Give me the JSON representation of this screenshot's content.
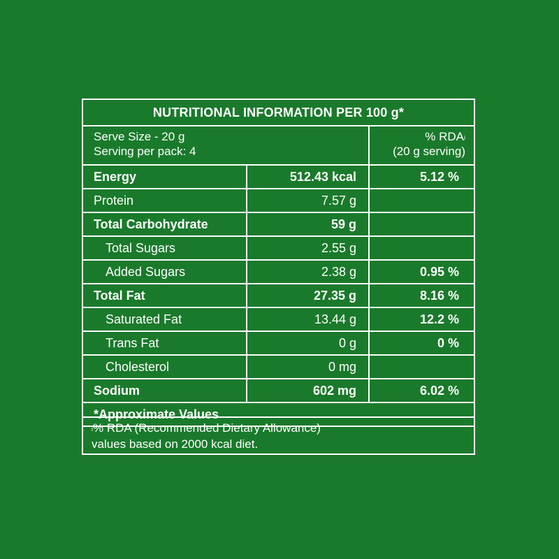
{
  "title": "NUTRITIONAL INFORMATION PER 100 g*",
  "serve": {
    "size": "Serve Size - 20 g",
    "per_pack": "Serving per pack: 4",
    "rda_label": "% RDA",
    "rda_mark": "i",
    "rda_serving": "(20 g serving)"
  },
  "rows": [
    {
      "name": "Energy",
      "value": "512.43 kcal",
      "rda": "5.12 %"
    },
    {
      "name": "Protein",
      "value": "7.57 g",
      "rda": ""
    },
    {
      "name": "Total Carbohydrate",
      "value": "59 g",
      "rda": ""
    },
    {
      "name": "Total Sugars",
      "value": "2.55 g",
      "rda": ""
    },
    {
      "name": "Added Sugars",
      "value": "2.38 g",
      "rda": "0.95 %"
    },
    {
      "name": "Total Fat",
      "value": "27.35 g",
      "rda": "8.16 %"
    },
    {
      "name": "Saturated Fat",
      "value": "13.44 g",
      "rda": "12.2 %"
    },
    {
      "name": "Trans Fat",
      "value": "0 g",
      "rda": "0 %"
    },
    {
      "name": "Cholesterol",
      "value": "0 mg",
      "rda": ""
    },
    {
      "name": "Sodium",
      "value": "602 mg",
      "rda": "6.02 %"
    }
  ],
  "approx_note": "*Approximate Values",
  "footnote": {
    "mark": "i",
    "line1": "% RDA (Recommended Dietary Allowance)",
    "line2": "values based on 2000 kcal diet."
  },
  "colors": {
    "background": "#1a7a2b",
    "text": "#ffffff"
  }
}
